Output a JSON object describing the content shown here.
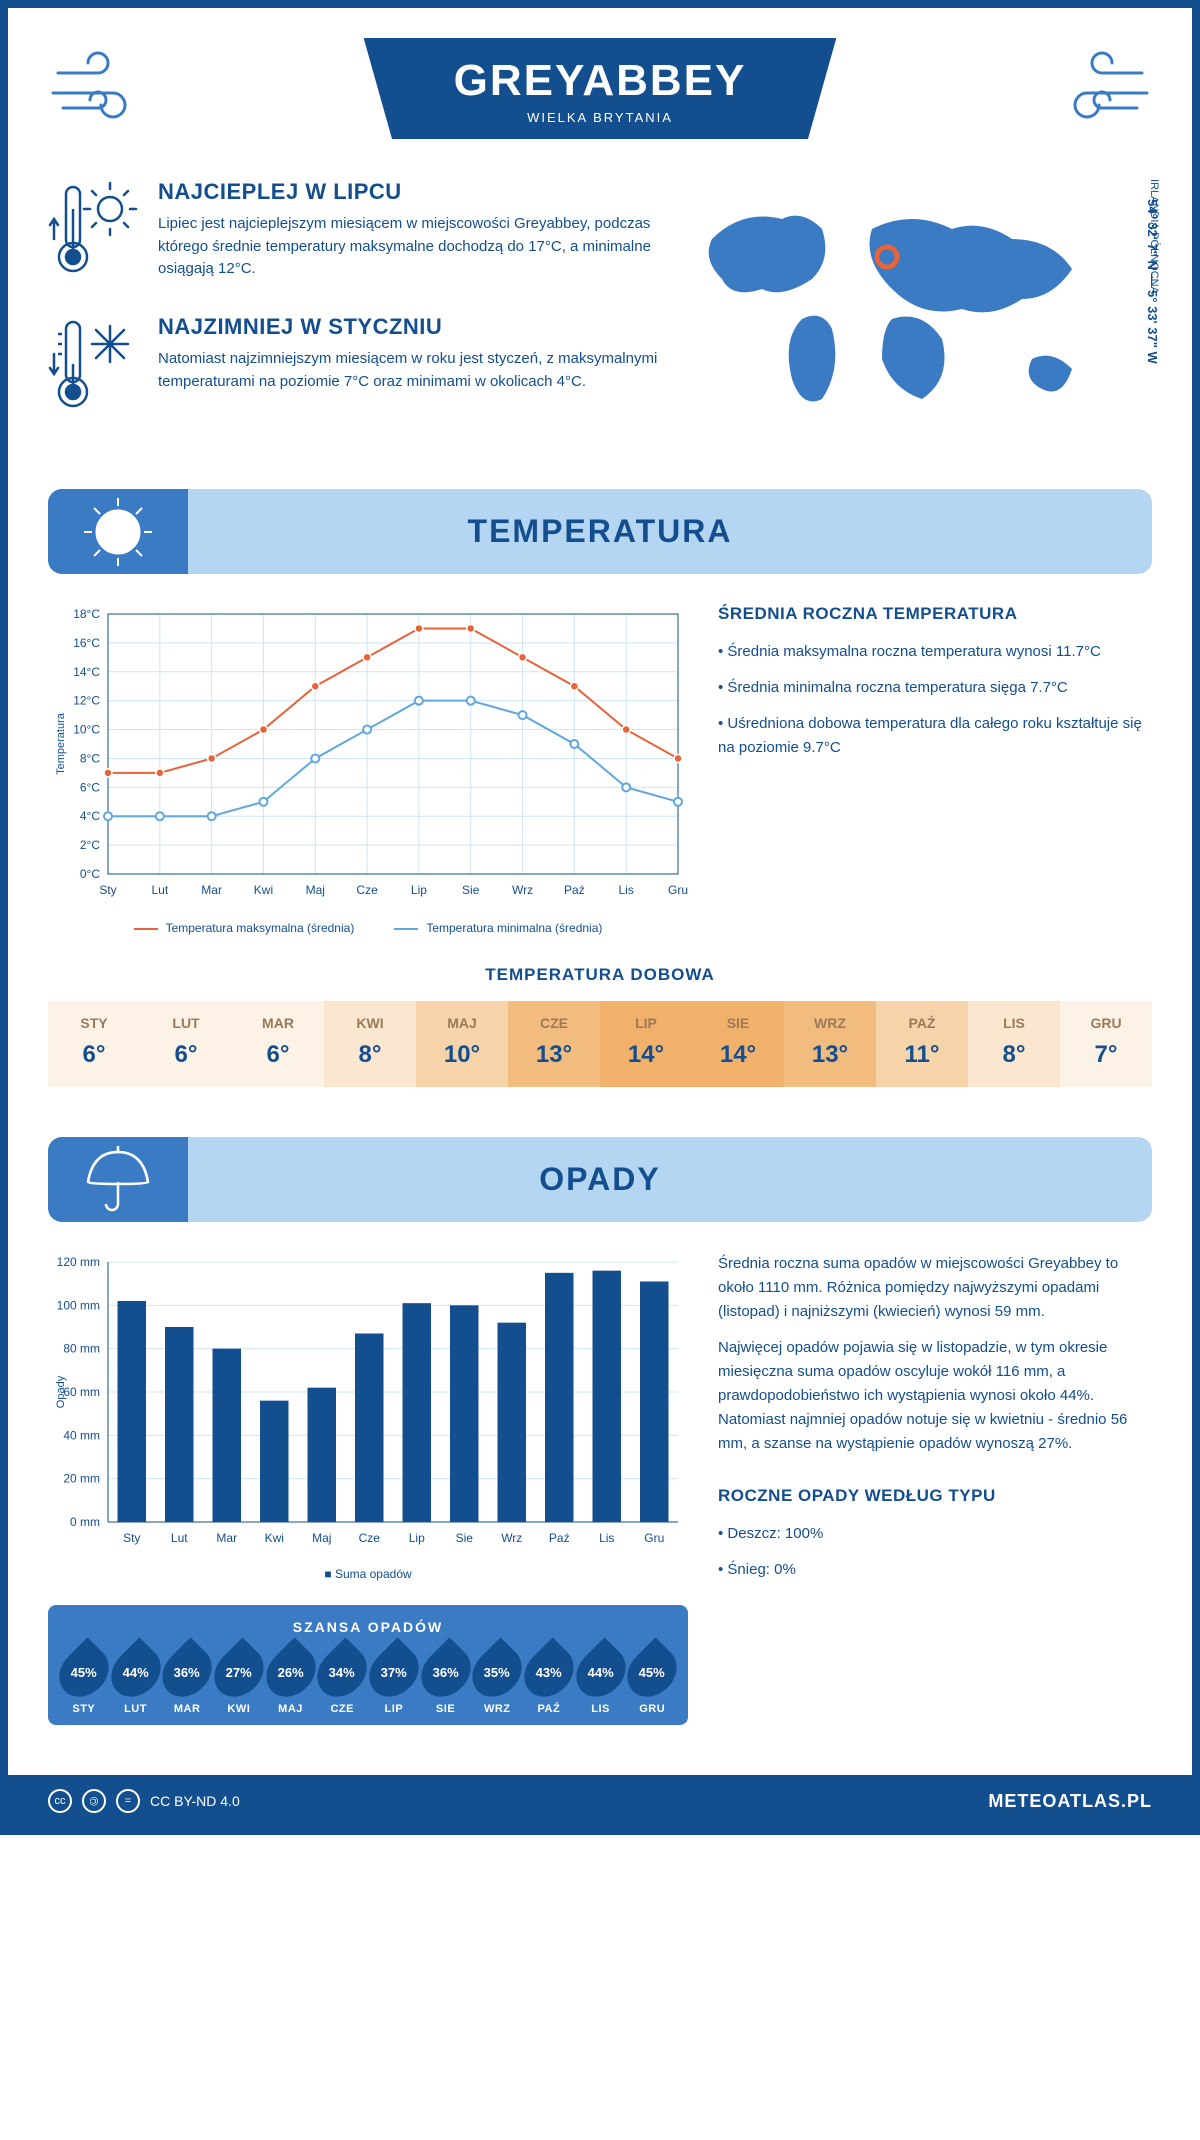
{
  "header": {
    "title": "GREYABBEY",
    "subtitle": "WIELKA BRYTANIA"
  },
  "location": {
    "coords": "54° 32' 7\" N — 5° 33' 37\" W",
    "region": "IRLANDIA PÓŁNOCNA"
  },
  "summary": {
    "hot": {
      "title": "NAJCIEPLEJ W LIPCU",
      "text": "Lipiec jest najcieplejszym miesiącem w miejscowości Greyabbey, podczas którego średnie temperatury maksymalne dochodzą do 17°C, a minimalne osiągają 12°C."
    },
    "cold": {
      "title": "NAJZIMNIEJ W STYCZNIU",
      "text": "Natomiast najzimniejszym miesiącem w roku jest styczeń, z maksymalnymi temperaturami na poziomie 7°C oraz minimami w okolicach 4°C."
    }
  },
  "sections": {
    "temperature": "TEMPERATURA",
    "precipitation": "OPADY"
  },
  "temp_chart": {
    "type": "line",
    "months": [
      "Sty",
      "Lut",
      "Mar",
      "Kwi",
      "Maj",
      "Cze",
      "Lip",
      "Sie",
      "Wrz",
      "Paź",
      "Lis",
      "Gru"
    ],
    "max": [
      7,
      7,
      8,
      10,
      13,
      15,
      17,
      17,
      15,
      13,
      10,
      8
    ],
    "min": [
      4,
      4,
      4,
      5,
      8,
      10,
      12,
      12,
      11,
      9,
      6,
      5
    ],
    "ymin": 0,
    "ymax": 18,
    "ystep": 2,
    "y_axis_title": "Temperatura",
    "line_max_color": "#e8623a",
    "line_min_color": "#5fa7e0",
    "grid_color": "#cfe4f5",
    "legend_max": "Temperatura maksymalna (średnia)",
    "legend_min": "Temperatura minimalna (średnia)"
  },
  "temp_side": {
    "title": "ŚREDNIA ROCZNA TEMPERATURA",
    "b1": "Średnia maksymalna roczna temperatura wynosi 11.7°C",
    "b2": "Średnia minimalna roczna temperatura sięga 7.7°C",
    "b3": "Uśredniona dobowa temperatura dla całego roku kształtuje się na poziomie 9.7°C"
  },
  "daily": {
    "title": "TEMPERATURA DOBOWA",
    "months": [
      "STY",
      "LUT",
      "MAR",
      "KWI",
      "MAJ",
      "CZE",
      "LIP",
      "SIE",
      "WRZ",
      "PAŹ",
      "LIS",
      "GRU"
    ],
    "values": [
      "6°",
      "6°",
      "6°",
      "8°",
      "10°",
      "13°",
      "14°",
      "14°",
      "13°",
      "11°",
      "8°",
      "7°"
    ],
    "colors": [
      "#fdf2e6",
      "#fdf2e6",
      "#fdf2e6",
      "#fbe6cf",
      "#f7d3a9",
      "#f3bc7f",
      "#f1b16a",
      "#f1b16a",
      "#f3bc7f",
      "#f7d3a9",
      "#fbe6cf",
      "#fdf2e6"
    ]
  },
  "precip_chart": {
    "type": "bar",
    "months": [
      "Sty",
      "Lut",
      "Mar",
      "Kwi",
      "Maj",
      "Cze",
      "Lip",
      "Sie",
      "Wrz",
      "Paź",
      "Lis",
      "Gru"
    ],
    "values": [
      102,
      90,
      80,
      56,
      62,
      87,
      101,
      100,
      92,
      115,
      116,
      111
    ],
    "ymin": 0,
    "ymax": 120,
    "ystep": 20,
    "y_axis_title": "Opady",
    "bar_color": "#134e8f",
    "legend": "Suma opadów"
  },
  "precip_side": {
    "p1": "Średnia roczna suma opadów w miejscowości Greyabbey to około 1110 mm. Różnica pomiędzy najwyższymi opadami (listopad) i najniższymi (kwiecień) wynosi 59 mm.",
    "p2": "Najwięcej opadów pojawia się w listopadzie, w tym okresie miesięczna suma opadów oscyluje wokół 116 mm, a prawdopodobieństwo ich wystąpienia wynosi około 44%. Natomiast najmniej opadów notuje się w kwietniu - średnio 56 mm, a szanse na wystąpienie opadów wynoszą 27%."
  },
  "chance": {
    "title": "SZANSA OPADÓW",
    "months": [
      "STY",
      "LUT",
      "MAR",
      "KWI",
      "MAJ",
      "CZE",
      "LIP",
      "SIE",
      "WRZ",
      "PAŹ",
      "LIS",
      "GRU"
    ],
    "values": [
      "45%",
      "44%",
      "36%",
      "27%",
      "26%",
      "34%",
      "37%",
      "36%",
      "35%",
      "43%",
      "44%",
      "45%"
    ]
  },
  "precip_type": {
    "title": "ROCZNE OPADY WEDŁUG TYPU",
    "b1": "Deszcz: 100%",
    "b2": "Śnieg: 0%"
  },
  "footer": {
    "license": "CC BY-ND 4.0",
    "site": "METEOATLAS.PL"
  }
}
